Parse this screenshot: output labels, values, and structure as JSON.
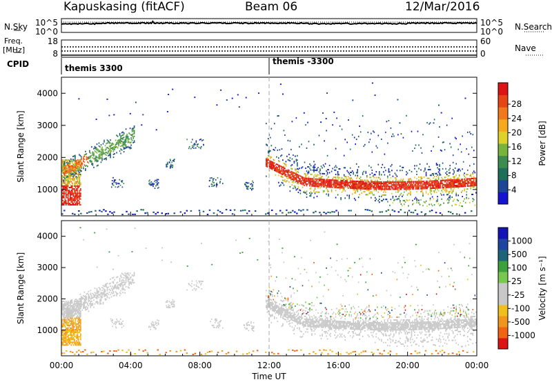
{
  "header": {
    "site": "Kapuskasing (fitACF)",
    "beam": "Beam 06",
    "date": "12/Mar/2016"
  },
  "top_panels": {
    "nsky_label": "N.Sky",
    "nsky_ticks": [
      "10^5",
      "10^0"
    ],
    "nsearch_label": "N.Search",
    "nsearch_ticks": [
      "10^5",
      "10^0"
    ],
    "freq_label_line1": "Freq.",
    "freq_label_line2": "[MHz]",
    "freq_ticks": [
      "18",
      "8"
    ],
    "nave_label": "Nave",
    "nave_ticks": [
      "60",
      "0"
    ],
    "cpid_label": "CPID",
    "cpid_segments": [
      "themis 3300",
      "themis -3300"
    ]
  },
  "chart_data": [
    {
      "type": "heatmap",
      "panel": "power",
      "xlabel": "",
      "ylabel": "Slant Range [km]",
      "x_ticks": [
        "00:00",
        "04:00",
        "08:00",
        "12:00",
        "16:00",
        "20:00",
        "00:00"
      ],
      "y_ticks": [
        1000,
        2000,
        3000,
        4000
      ],
      "xlim_hours": [
        0,
        24
      ],
      "ylim_km": [
        180,
        4500
      ],
      "colorbar_label": "Power [dB]",
      "colorbar_ticks": [
        4,
        8,
        12,
        16,
        20,
        24,
        28
      ],
      "colorbar_colors": [
        "#1414d2",
        "#1e4696",
        "#1e6e5a",
        "#3c8c50",
        "#78b43c",
        "#dcd228",
        "#f5aa1e",
        "#f0781e",
        "#e64614",
        "#dc1414"
      ]
    },
    {
      "type": "heatmap",
      "panel": "velocity",
      "xlabel": "Time UT",
      "ylabel": "Slant Range [km]",
      "x_ticks": [
        "00:00",
        "04:00",
        "08:00",
        "12:00",
        "16:00",
        "20:00",
        "00:00"
      ],
      "y_ticks": [
        1000,
        2000,
        3000,
        4000
      ],
      "xlim_hours": [
        0,
        24
      ],
      "ylim_km": [
        180,
        4500
      ],
      "colorbar_label": "Velocity  [m s⁻¹]",
      "colorbar_ticks": [
        1000,
        500,
        100,
        25,
        -25,
        -100,
        -500,
        -1000
      ],
      "colorbar_colors": [
        "#1414b4",
        "#1e46a0",
        "#1e6478",
        "#3ca03c",
        "#78c850",
        "#c8c8c8",
        "#c8c8c8",
        "#f0be1e",
        "#f0961e",
        "#f06414",
        "#dc1414"
      ],
      "ground_scatter_color": "#c8c8c8"
    }
  ]
}
